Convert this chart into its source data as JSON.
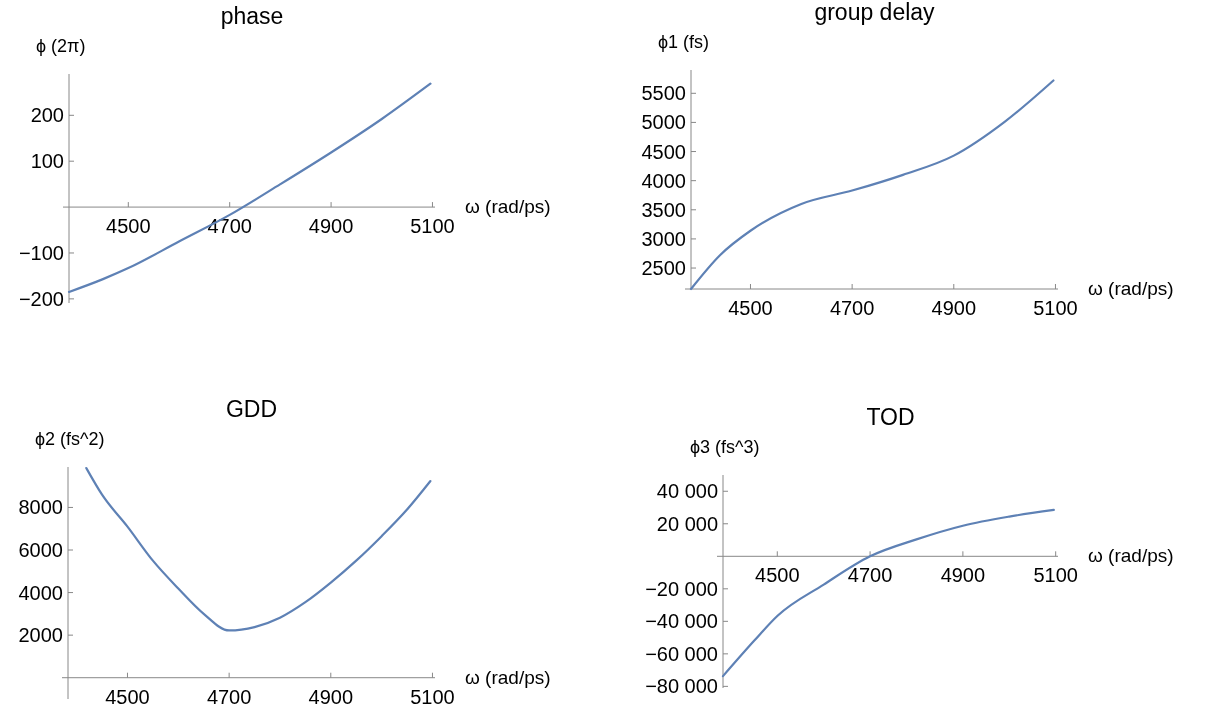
{
  "chart_data": [
    {
      "type": "line",
      "title": "phase",
      "xlabel": "ω (rad/ps)",
      "ylabel": "ϕ (2π)",
      "x": [
        4383,
        4450,
        4500,
        4600,
        4700,
        4800,
        4900,
        5000,
        5096
      ],
      "series": [
        {
          "color": "#5e81b5",
          "values": [
            -185,
            -157,
            -133,
            -75,
            -17,
            50,
            119,
            192,
            269
          ]
        }
      ],
      "xlim": [
        4383,
        5105
      ],
      "ylim": [
        -209,
        290
      ],
      "xticks": [
        4500,
        4700,
        4900,
        5100
      ],
      "yticks": [
        {
          "value": -200,
          "label": "−200"
        },
        {
          "value": -100,
          "label": "−100"
        },
        100,
        200
      ]
    },
    {
      "type": "line",
      "title": "group delay",
      "xlabel": "ω (rad/ps)",
      "ylabel": "ϕ1 (fs)",
      "x": [
        4383,
        4440,
        4500,
        4600,
        4700,
        4800,
        4900,
        5000,
        5096
      ],
      "series": [
        {
          "color": "#5e81b5",
          "values": [
            2140,
            2720,
            3140,
            3600,
            3830,
            4100,
            4430,
            5010,
            5720
          ]
        }
      ],
      "xlim": [
        4383,
        5105
      ],
      "ylim": [
        2140,
        5900
      ],
      "xticks": [
        4500,
        4700,
        4900,
        5100
      ],
      "yticks": [
        2500,
        3000,
        3500,
        4000,
        4500,
        5000,
        5500
      ]
    },
    {
      "type": "line",
      "title": "GDD",
      "xlabel": "ω (rad/ps)",
      "ylabel": "ϕ2 (fs^2)",
      "x": [
        4419,
        4450,
        4500,
        4550,
        4600,
        4650,
        4700,
        4750,
        4800,
        4850,
        4900,
        4950,
        5000,
        5050,
        5096
      ],
      "series": [
        {
          "color": "#5e81b5",
          "values": [
            9850,
            8600,
            7100,
            5500,
            4190,
            3000,
            2220,
            2380,
            2820,
            3550,
            4470,
            5500,
            6650,
            7900,
            9240
          ]
        }
      ],
      "xlim": [
        4383,
        5105
      ],
      "ylim": [
        -1000,
        9900
      ],
      "xticks": [
        4500,
        4700,
        4900,
        5100
      ],
      "yticks": [
        2000,
        4000,
        6000,
        8000
      ]
    },
    {
      "type": "line",
      "title": "TOD",
      "xlabel": "ω (rad/ps)",
      "ylabel": "ϕ3 (fs^3)",
      "x": [
        4383,
        4450,
        4500,
        4600,
        4700,
        4800,
        4900,
        5000,
        5096
      ],
      "series": [
        {
          "color": "#5e81b5",
          "values": [
            -73700,
            -52000,
            -36700,
            -17400,
            0,
            10400,
            18800,
            24400,
            28500
          ]
        }
      ],
      "xlim": [
        4383,
        5105
      ],
      "ylim": [
        -81000,
        50000
      ],
      "xticks": [
        4500,
        4700,
        4900,
        5100
      ],
      "yticks": [
        {
          "value": -80000,
          "label": "−80 000"
        },
        {
          "value": -60000,
          "label": "−60 000"
        },
        {
          "value": -40000,
          "label": "−40 000"
        },
        {
          "value": -20000,
          "label": "−20 000"
        },
        {
          "value": 20000,
          "label": "20 000"
        },
        {
          "value": 40000,
          "label": "40 000"
        }
      ]
    }
  ]
}
